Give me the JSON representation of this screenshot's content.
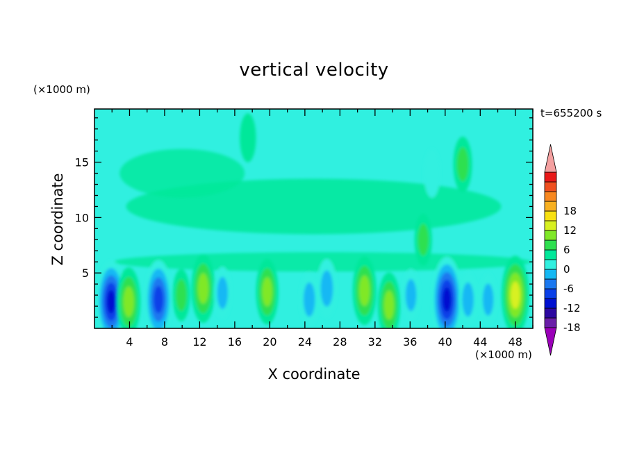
{
  "chart_data": {
    "type": "heatmap",
    "title": "vertical velocity",
    "xlabel": "X coordinate",
    "ylabel": "Z coordinate",
    "x_unit_label": "(×1000 m)",
    "y_unit_label": "(×1000 m)",
    "time_label": "t=655200 s",
    "xlim": [
      0,
      50
    ],
    "ylim": [
      0,
      19.8
    ],
    "x_ticks": [
      4,
      8,
      12,
      16,
      20,
      24,
      28,
      32,
      36,
      40,
      44,
      48
    ],
    "y_ticks": [
      5,
      10,
      15
    ],
    "colorbar": {
      "min": -21,
      "max": 21,
      "step": 3,
      "labeled_ticks": [
        -18,
        -12,
        -6,
        0,
        6,
        12,
        18
      ],
      "colors": [
        "#9a00b8",
        "#6a1ea8",
        "#2c08a0",
        "#0010d0",
        "#0a40e8",
        "#1a78f0",
        "#14b8f4",
        "#30f0e0",
        "#00e89a",
        "#2ee050",
        "#80e828",
        "#d8f020",
        "#f8e010",
        "#f8b020",
        "#f88820",
        "#f05020",
        "#e81818",
        "#f4a0a0"
      ]
    },
    "features": [
      {
        "x": 1.9,
        "z": 2.4,
        "w": -13
      },
      {
        "x": 3.9,
        "z": 2.4,
        "w": 9
      },
      {
        "x": 7.3,
        "z": 2.6,
        "w": -12
      },
      {
        "x": 9.9,
        "z": 3.0,
        "w": 4
      },
      {
        "x": 12.4,
        "z": 3.6,
        "w": 9
      },
      {
        "x": 14.6,
        "z": 3.2,
        "w": -4
      },
      {
        "x": 19.7,
        "z": 3.3,
        "w": 8
      },
      {
        "x": 24.5,
        "z": 2.6,
        "w": -5
      },
      {
        "x": 26.5,
        "z": 3.6,
        "w": -6
      },
      {
        "x": 30.8,
        "z": 3.4,
        "w": 9
      },
      {
        "x": 33.6,
        "z": 2.1,
        "w": 8
      },
      {
        "x": 36.1,
        "z": 3.0,
        "w": -4
      },
      {
        "x": 40.2,
        "z": 2.6,
        "w": -14
      },
      {
        "x": 42.6,
        "z": 2.6,
        "w": -5
      },
      {
        "x": 44.9,
        "z": 2.6,
        "w": -4
      },
      {
        "x": 48.0,
        "z": 3.0,
        "w": 12
      },
      {
        "x": 37.5,
        "z": 8.0,
        "w": 4
      },
      {
        "x": 42.0,
        "z": 14.8,
        "w": 5
      },
      {
        "x": 38.5,
        "z": 14.0,
        "w": -3
      },
      {
        "x": 17.5,
        "z": 17.2,
        "w": 3
      }
    ]
  }
}
